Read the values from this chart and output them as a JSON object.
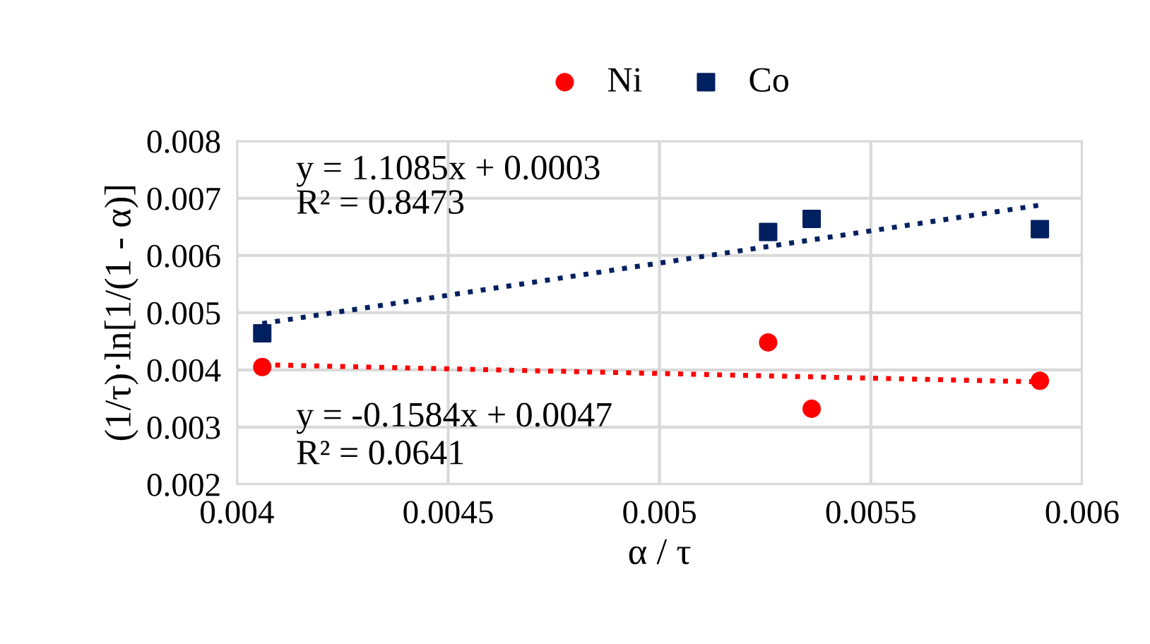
{
  "chart_data": {
    "type": "scatter",
    "xlabel": "α / τ",
    "ylabel": "(1/τ)·ln[1/(1 - α)]",
    "xlim": [
      0.004,
      0.006
    ],
    "xticks": [
      0.004,
      0.0045,
      0.005,
      0.0055,
      0.006
    ],
    "ylim": [
      0.002,
      0.008
    ],
    "yticks": [
      0.002,
      0.003,
      0.004,
      0.005,
      0.006,
      0.007,
      0.008
    ],
    "grid": true,
    "legend": "top",
    "series": [
      {
        "name": "Ni",
        "marker": "circle",
        "color": "#ff0000",
        "x": [
          0.00406,
          0.005257,
          0.00536,
          0.0059
        ],
        "values": [
          0.00405,
          0.00448,
          0.00332,
          0.00381
        ]
      },
      {
        "name": "Co",
        "marker": "square",
        "color": "#002060",
        "x": [
          0.00406,
          0.005257,
          0.00536,
          0.0059
        ],
        "values": [
          0.00464,
          0.00641,
          0.00664,
          0.00646
        ]
      },
      {
        "type": "line",
        "marker": "none",
        "line_style": "dotted",
        "color": "#ff0000",
        "x": [
          0.00406,
          0.0059
        ],
        "values": [
          0.00409,
          0.00379
        ]
      },
      {
        "type": "line",
        "marker": "none",
        "line_style": "dotted",
        "color": "#002060",
        "x": [
          0.00406,
          0.0059
        ],
        "values": [
          0.00481,
          0.00688
        ]
      }
    ],
    "annotations": [
      "y = 1.1085x + 0.0003",
      "R² = 0.8473",
      "y = -0.1584x + 0.0047",
      "R² = 0.0641"
    ]
  }
}
